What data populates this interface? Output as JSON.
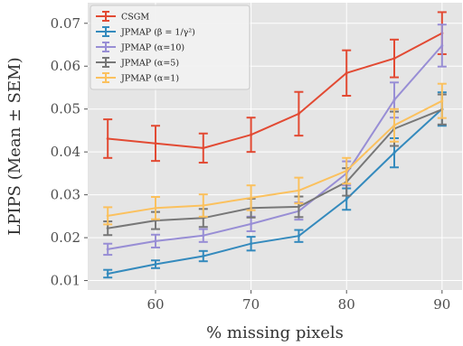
{
  "chart_data": {
    "type": "line",
    "xlabel": "% missing pixels",
    "ylabel": "LPIPS (Mean ± SEM)",
    "x": [
      55,
      60,
      65,
      70,
      75,
      80,
      85,
      90
    ],
    "xlim": [
      52.9,
      92.1
    ],
    "ylim": [
      0.0078,
      0.0748
    ],
    "xticks": [
      60,
      70,
      80,
      90
    ],
    "xtick_labels": [
      "60",
      "70",
      "80",
      "90"
    ],
    "yticks": [
      0.01,
      0.02,
      0.03,
      0.04,
      0.05,
      0.06,
      0.07
    ],
    "ytick_labels": [
      "0.01",
      "0.02",
      "0.03",
      "0.04",
      "0.05",
      "0.06",
      "0.07"
    ],
    "grid": true,
    "legend_position": "top-left",
    "series": [
      {
        "name": "CSGM",
        "color": "#E24A33",
        "values": [
          0.0431,
          0.042,
          0.0409,
          0.044,
          0.0489,
          0.0584,
          0.0618,
          0.0677
        ],
        "errors": [
          0.0045,
          0.0041,
          0.0034,
          0.004,
          0.0051,
          0.0053,
          0.0044,
          0.0049
        ]
      },
      {
        "name": "JPMAP (β = 1/γ²)",
        "color": "#348ABD",
        "values": [
          0.0116,
          0.0138,
          0.0157,
          0.0186,
          0.0204,
          0.029,
          0.0398,
          0.05
        ],
        "errors": [
          0.0009,
          0.0009,
          0.0012,
          0.0016,
          0.0014,
          0.0025,
          0.0034,
          0.0039
        ]
      },
      {
        "name": "JPMAP (α=10)",
        "color": "#988ED5",
        "values": [
          0.0173,
          0.0192,
          0.0205,
          0.0232,
          0.0262,
          0.035,
          0.0521,
          0.0648
        ],
        "errors": [
          0.0013,
          0.0015,
          0.0015,
          0.0017,
          0.002,
          0.0028,
          0.0041,
          0.0049
        ]
      },
      {
        "name": "JPMAP (α=5)",
        "color": "#777777",
        "values": [
          0.0222,
          0.024,
          0.0246,
          0.0269,
          0.0272,
          0.033,
          0.0454,
          0.0499
        ],
        "errors": [
          0.0016,
          0.002,
          0.0021,
          0.0022,
          0.0024,
          0.0032,
          0.004,
          0.0035
        ]
      },
      {
        "name": "JPMAP (α=1)",
        "color": "#FBC15E",
        "values": [
          0.0251,
          0.0269,
          0.0275,
          0.0293,
          0.031,
          0.0356,
          0.0462,
          0.0519
        ],
        "errors": [
          0.002,
          0.0026,
          0.0026,
          0.0029,
          0.003,
          0.003,
          0.0038,
          0.004
        ]
      }
    ]
  }
}
